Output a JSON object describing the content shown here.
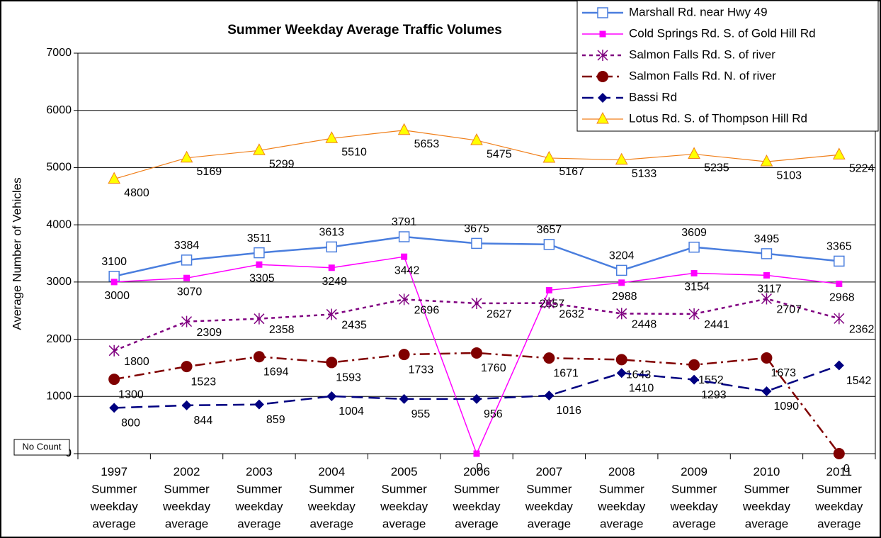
{
  "chart_data": {
    "type": "line",
    "title": "Summer Weekday Average Traffic Volumes",
    "y_label": "Average Number of Vehicles",
    "annotation": "No Count",
    "categories": [
      [
        "1997",
        "Summer",
        "weekday",
        "average"
      ],
      [
        "2002",
        "Summer",
        "weekday",
        "average"
      ],
      [
        "2003",
        "Summer",
        "weekday",
        "average"
      ],
      [
        "2004",
        "Summer",
        "weekday",
        "average"
      ],
      [
        "2005",
        "Summer",
        "weekday",
        "average"
      ],
      [
        "2006",
        "Summer",
        "weekday",
        "average"
      ],
      [
        "2007",
        "Summer",
        "weekday",
        "average"
      ],
      [
        "2008",
        "Summer",
        "weekday",
        "average"
      ],
      [
        "2009",
        "Summer",
        "weekday",
        "average"
      ],
      [
        "2010",
        "Summer",
        "weekday",
        "average"
      ],
      [
        "2011",
        "Summer",
        "weekday",
        "average"
      ]
    ],
    "series": [
      {
        "name": "Marshall Rd. near Hwy 49",
        "color": "#4a7ede",
        "marker": "open-square",
        "values": [
          3100,
          3384,
          3511,
          3613,
          3791,
          3675,
          3657,
          3204,
          3609,
          3495,
          3365
        ]
      },
      {
        "name": "Cold Springs Rd. S. of Gold Hill Rd",
        "color": "#ff00ff",
        "marker": "square",
        "values": [
          3000,
          3070,
          3305,
          3249,
          3442,
          0,
          2857,
          2988,
          3154,
          3117,
          2968
        ]
      },
      {
        "name": "Salmon Falls Rd. S. of river",
        "color": "#800080",
        "marker": "asterisk",
        "dash": "5,5",
        "values": [
          1800,
          2309,
          2358,
          2435,
          2696,
          2627,
          2632,
          2448,
          2441,
          2707,
          2362
        ]
      },
      {
        "name": "Salmon Falls Rd. N. of river",
        "color": "#800000",
        "marker": "circle",
        "dash": "14,6,3,6",
        "values": [
          1300,
          1523,
          1694,
          1593,
          1733,
          1760,
          1671,
          1643,
          1552,
          1673,
          0
        ]
      },
      {
        "name": "Bassi Rd",
        "color": "#000080",
        "marker": "diamond",
        "dash": "16,8",
        "values": [
          800,
          844,
          859,
          1004,
          955,
          956,
          1016,
          1410,
          1293,
          1090,
          1542
        ]
      },
      {
        "name": "Lotus Rd. S. of Thompson Hill Rd",
        "color": "#f07f1a",
        "marker": "triangle",
        "values": [
          4800,
          5169,
          5299,
          5510,
          5653,
          5475,
          5167,
          5133,
          5235,
          5103,
          5224
        ]
      }
    ],
    "ylim": [
      0,
      7000
    ],
    "yticks": [
      0,
      1000,
      2000,
      3000,
      4000,
      5000,
      6000,
      7000
    ],
    "grid": true
  }
}
